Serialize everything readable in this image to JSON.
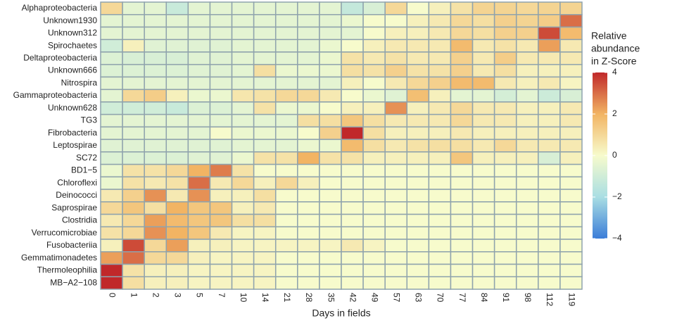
{
  "chart_data": {
    "type": "heatmap",
    "x_label": "Days in fields",
    "categories": [
      "0",
      "1",
      "2",
      "3",
      "5",
      "7",
      "10",
      "14",
      "21",
      "28",
      "35",
      "42",
      "49",
      "57",
      "63",
      "70",
      "77",
      "84",
      "91",
      "98",
      "112",
      "119"
    ],
    "rows": [
      "Alphaproteobacteria",
      "Unknown1930",
      "Unknown312",
      "Spirochaetes",
      "Deltaproteobacteria",
      "Unknown666",
      "Nitrospira",
      "Gammaproteobacteria",
      "Unknown628",
      "TG3",
      "Fibrobacteria",
      "Leptospirae",
      "SC72",
      "BD1−5",
      "Chloroflexi",
      "Deinococci",
      "Saprospirae",
      "Clostridia",
      "Verrucomicrobiae",
      "Fusobacteriia",
      "Gemmatimonadetes",
      "Thermoleophilia",
      "MB−A2−108"
    ],
    "values": [
      [
        1,
        -0.5,
        -0.5,
        -1.2,
        -0.5,
        -0.5,
        -0.5,
        -0.5,
        -0.5,
        -0.5,
        -0.5,
        -1.3,
        -0.8,
        1,
        0,
        0.3,
        0.7,
        1.1,
        1.1,
        1,
        1.1,
        1.1
      ],
      [
        -0.5,
        -0.5,
        -0.5,
        -0.5,
        -0.5,
        -0.5,
        -0.5,
        -0.5,
        -0.5,
        -0.5,
        -0.5,
        -0.3,
        0,
        0,
        0.3,
        0.5,
        1,
        0.8,
        1.2,
        1.1,
        1.3,
        3
      ],
      [
        -0.5,
        -0.5,
        -0.5,
        -0.5,
        -0.5,
        -0.5,
        -0.5,
        -0.5,
        -0.5,
        -0.5,
        -0.5,
        -0.5,
        0,
        0.3,
        0.3,
        0.5,
        1,
        0.8,
        1.2,
        1.2,
        3.5,
        1.8
      ],
      [
        -1,
        0.3,
        -0.6,
        -0.6,
        -0.6,
        -0.6,
        -0.5,
        -0.5,
        -0.5,
        -0.5,
        -0.3,
        0,
        0.3,
        0.5,
        0.5,
        0.5,
        1.8,
        0.5,
        0.7,
        0.5,
        2.3,
        0.5
      ],
      [
        -0.7,
        -0.8,
        -0.8,
        -0.8,
        -0.6,
        -0.6,
        -0.5,
        -0.5,
        -0.5,
        -0.5,
        -0.3,
        0.7,
        0.5,
        0.7,
        0.5,
        0.5,
        1.2,
        0.5,
        1.3,
        0.5,
        0.5,
        0.5
      ],
      [
        -0.7,
        -0.7,
        -0.7,
        -0.7,
        -0.6,
        -0.6,
        -0.5,
        0.8,
        -0.3,
        -0.3,
        -0.3,
        0.8,
        0.7,
        1.2,
        0.7,
        0.7,
        1.2,
        0.5,
        0.8,
        0.3,
        0.3,
        0.3
      ],
      [
        -0.5,
        -0.5,
        -0.5,
        -0.5,
        -0.5,
        -0.5,
        -0.5,
        -0.5,
        -0.5,
        -0.5,
        -0.5,
        0.3,
        0,
        0.5,
        1,
        1.2,
        1.8,
        1.8,
        0.5,
        0.3,
        0.5,
        0.2
      ],
      [
        -0.5,
        1,
        1.3,
        0.3,
        -0.3,
        -0.3,
        0.6,
        0.7,
        1,
        1,
        0.5,
        0,
        -0.3,
        -0.6,
        1.7,
        0.3,
        -0.5,
        -0.5,
        -0.9,
        -0.5,
        -1.1,
        -0.8
      ],
      [
        -1,
        -1,
        -1,
        -1.2,
        -0.7,
        -0.7,
        -0.5,
        0.7,
        -0.3,
        -0.3,
        0,
        0.3,
        0.3,
        2.5,
        0.3,
        0.5,
        1,
        0.5,
        0.5,
        0.3,
        0.3,
        0.5
      ],
      [
        -0.5,
        -0.5,
        -0.5,
        -0.5,
        -0.5,
        -0.5,
        -0.5,
        -0.5,
        -0.5,
        0.8,
        0.8,
        1.5,
        0.8,
        0.5,
        0.5,
        0.5,
        1,
        0.5,
        0.5,
        0.3,
        0.3,
        0.5
      ],
      [
        -0.5,
        -0.5,
        -0.5,
        -0.5,
        -0.5,
        0,
        -0.3,
        -0.3,
        -0.3,
        0,
        1.2,
        4,
        0.8,
        0.3,
        0.3,
        0.3,
        0.5,
        0.3,
        0.3,
        0.3,
        0.3,
        0.3
      ],
      [
        -0.6,
        -0.6,
        -0.6,
        -0.6,
        -0.6,
        -0.6,
        -0.5,
        -0.5,
        -0.5,
        -0.3,
        -0.3,
        1.8,
        0.8,
        0.5,
        0.7,
        0.8,
        0.8,
        0.5,
        1,
        0.5,
        0.5,
        0.5
      ],
      [
        -0.7,
        -0.7,
        -0.7,
        -0.7,
        -0.6,
        -0.6,
        -0.3,
        0.7,
        0.7,
        2,
        0.7,
        0.7,
        0.3,
        0.3,
        0.3,
        0.3,
        1.5,
        0.3,
        0.3,
        0.3,
        -0.8,
        0.3
      ],
      [
        -0.3,
        0.7,
        0.7,
        1,
        2,
        2.8,
        0.7,
        0,
        0,
        0,
        0,
        0,
        0,
        0,
        0,
        0,
        0,
        0,
        0,
        0,
        0,
        0
      ],
      [
        -0.3,
        0.7,
        0.5,
        0.7,
        3,
        0.5,
        1,
        0.3,
        1,
        0.3,
        0,
        0,
        0,
        0,
        0,
        0,
        0,
        0,
        0,
        0,
        0,
        0
      ],
      [
        0.5,
        1.2,
        2.5,
        0.5,
        2.5,
        0.3,
        0.3,
        0.8,
        0,
        0,
        0,
        0,
        0,
        0,
        0,
        0,
        0,
        0,
        0,
        0,
        0,
        0
      ],
      [
        1,
        1.5,
        0.8,
        2,
        1.5,
        1.5,
        0.3,
        0.5,
        0,
        0,
        0,
        0,
        0,
        0,
        0,
        0,
        0,
        0,
        0,
        0,
        0,
        0
      ],
      [
        0.5,
        1,
        2.3,
        1.8,
        1.5,
        1.5,
        0.8,
        0.8,
        0,
        0,
        0,
        0,
        0,
        0,
        0,
        0,
        0,
        0,
        0,
        0,
        0,
        0
      ],
      [
        0.7,
        1,
        2.5,
        2,
        1.5,
        0.5,
        0.2,
        0.2,
        0,
        0,
        0,
        0,
        0,
        0,
        0,
        0,
        0,
        0,
        0,
        0,
        0,
        0
      ],
      [
        0.3,
        3.5,
        1,
        2.3,
        0.3,
        0.3,
        0.2,
        0.2,
        0.2,
        0.2,
        0.2,
        0.5,
        0.2,
        0,
        0,
        0,
        0,
        0,
        0,
        0,
        0,
        0
      ],
      [
        2.3,
        3,
        1,
        1,
        0.3,
        0.2,
        0.2,
        0.2,
        0,
        0,
        0,
        0,
        0,
        0,
        0,
        0,
        0,
        0,
        0,
        0,
        0,
        0
      ],
      [
        4,
        0.7,
        0.3,
        0.3,
        0.2,
        0.2,
        0.2,
        0.2,
        0,
        0,
        0,
        0,
        0,
        0,
        0,
        0,
        0,
        0,
        0,
        0,
        0,
        0
      ],
      [
        4,
        0.8,
        0.3,
        0.3,
        0.2,
        0.2,
        0.2,
        0.2,
        0,
        0,
        0,
        0,
        0,
        0,
        0,
        0,
        0,
        0,
        0,
        0,
        0,
        0
      ]
    ],
    "colorbar_title": [
      "Relative",
      "abundance",
      "in Z-Score"
    ],
    "colorbar_lim": [
      -4,
      4
    ],
    "colorbar_ticks": [
      {
        "value": -4,
        "label": "−4"
      },
      {
        "value": -2,
        "label": "−2"
      },
      0,
      2,
      4
    ],
    "colorscale": [
      {
        "value": -4,
        "color": "#3b7dd8"
      },
      {
        "value": -2,
        "color": "#a9dee3"
      },
      {
        "value": 0,
        "color": "#f7fbcc"
      },
      {
        "value": 2,
        "color": "#f2b463"
      },
      {
        "value": 4,
        "color": "#c0282a"
      }
    ],
    "cell_border": "#8fa3ad"
  }
}
